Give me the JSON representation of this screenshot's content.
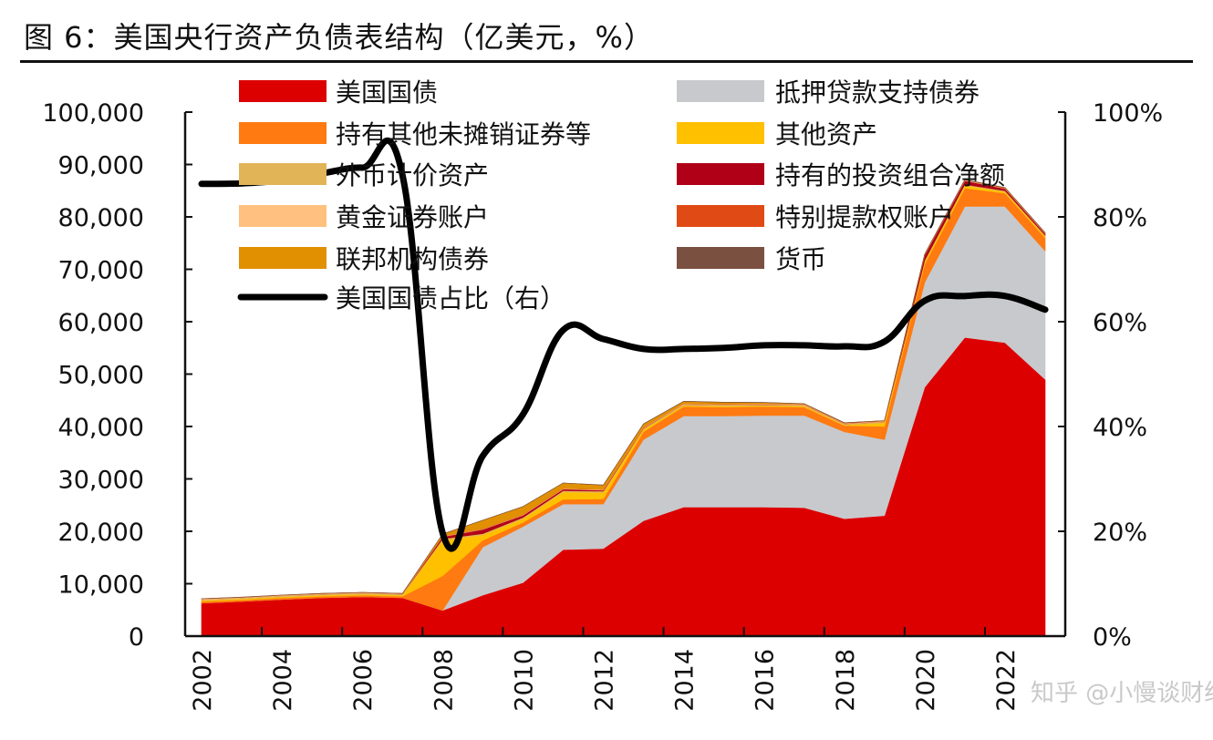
{
  "title": "图 6：美国央行资产负债表结构（亿美元，%）",
  "watermark": "知乎 @小慢谈财经",
  "chart_data": {
    "type": "area",
    "title": "图 6：美国央行资产负债表结构（亿美元，%）",
    "xlabel": "",
    "ylabel": "",
    "x": [
      2002,
      2003,
      2004,
      2005,
      2006,
      2007,
      2008,
      2009,
      2010,
      2011,
      2012,
      2013,
      2014,
      2015,
      2016,
      2017,
      2018,
      2019,
      2020,
      2021,
      2022,
      2023
    ],
    "x_tick_labels": [
      "2002",
      "2004",
      "2006",
      "2008",
      "2010",
      "2012",
      "2014",
      "2016",
      "2018",
      "2020",
      "2022"
    ],
    "ylim": [
      0,
      100000
    ],
    "y_tick_labels": [
      "0",
      "10,000",
      "20,000",
      "30,000",
      "40,000",
      "50,000",
      "60,000",
      "70,000",
      "80,000",
      "90,000",
      "100,000"
    ],
    "y2lim": [
      0,
      100
    ],
    "y2_tick_labels": [
      "0%",
      "20%",
      "40%",
      "60%",
      "80%",
      "100%"
    ],
    "stacked": true,
    "grid": false,
    "legend_placement": "top",
    "series": [
      {
        "name": "美国国债",
        "color": "#dd0000",
        "values": [
          6300,
          6600,
          7000,
          7300,
          7500,
          7300,
          4900,
          7800,
          10200,
          16500,
          16700,
          22000,
          24600,
          24600,
          24600,
          24500,
          22400,
          23000,
          47500,
          57000,
          56000,
          49000
        ]
      },
      {
        "name": "抵押贷款支持债券",
        "color": "#c8c9cd",
        "values": [
          0,
          0,
          0,
          0,
          0,
          0,
          0,
          9200,
          10700,
          8700,
          8500,
          15500,
          17400,
          17400,
          17500,
          17600,
          16600,
          14500,
          20000,
          25000,
          26000,
          24500
        ]
      },
      {
        "name": "持有其他未摊销证券等",
        "color": "#ff7a10",
        "values": [
          300,
          300,
          300,
          300,
          300,
          300,
          6600,
          1300,
          800,
          900,
          1000,
          1500,
          1800,
          1700,
          1700,
          1600,
          1200,
          2500,
          3500,
          3500,
          2500,
          2500
        ]
      },
      {
        "name": "其他资产",
        "color": "#ffc000",
        "values": [
          200,
          200,
          200,
          200,
          200,
          200,
          6800,
          1000,
          700,
          1400,
          1200,
          400,
          200,
          200,
          200,
          200,
          100,
          700,
          500,
          500,
          300,
          300
        ]
      },
      {
        "name": "外币计价资产",
        "color": "#e2b458",
        "values": [
          200,
          200,
          200,
          200,
          200,
          200,
          250,
          250,
          250,
          250,
          250,
          230,
          210,
          200,
          200,
          210,
          210,
          210,
          210,
          200,
          190,
          180
        ]
      },
      {
        "name": "持有的投资组合净额",
        "color": "#b00018",
        "values": [
          0,
          0,
          0,
          0,
          0,
          0,
          400,
          800,
          400,
          300,
          200,
          100,
          20,
          20,
          20,
          20,
          10,
          10,
          1000,
          700,
          400,
          300
        ]
      },
      {
        "name": "黄金证券账户",
        "color": "#ffc080",
        "values": [
          110,
          110,
          110,
          110,
          110,
          110,
          110,
          110,
          110,
          110,
          110,
          110,
          110,
          110,
          110,
          110,
          110,
          110,
          110,
          110,
          110,
          110
        ]
      },
      {
        "name": "特别提款权账户",
        "color": "#e04a14",
        "values": [
          22,
          22,
          22,
          22,
          22,
          22,
          22,
          50,
          52,
          52,
          52,
          52,
          52,
          52,
          52,
          52,
          52,
          52,
          52,
          52,
          52,
          52
        ]
      },
      {
        "name": "联邦机构债券",
        "color": "#e09000",
        "values": [
          0,
          0,
          0,
          0,
          0,
          0,
          400,
          1600,
          1500,
          1000,
          800,
          600,
          400,
          350,
          200,
          50,
          24,
          23,
          23,
          23,
          23,
          23
        ]
      },
      {
        "name": "货币",
        "color": "#7a5040",
        "values": [
          20,
          20,
          20,
          20,
          20,
          20,
          20,
          20,
          20,
          20,
          20,
          20,
          20,
          20,
          20,
          20,
          20,
          20,
          20,
          20,
          20,
          20
        ]
      }
    ],
    "line_series": {
      "name": "美国国债占比（右）",
      "color": "#000000",
      "axis": "right",
      "values": [
        86.3,
        86.4,
        87.0,
        88.3,
        89.4,
        88.0,
        19.7,
        34.4,
        42.3,
        58.4,
        56.7,
        54.8,
        54.8,
        55.0,
        55.5,
        55.5,
        55.3,
        56.2,
        64.0,
        64.9,
        64.9,
        62.3
      ]
    },
    "legend_order": [
      "美国国债",
      "抵押贷款支持债券",
      "持有其他未摊销证券等",
      "其他资产",
      "外币计价资产",
      "持有的投资组合净额",
      "黄金证券账户",
      "特别提款权账户",
      "联邦机构债券",
      "货币",
      "美国国债占比（右）"
    ]
  }
}
